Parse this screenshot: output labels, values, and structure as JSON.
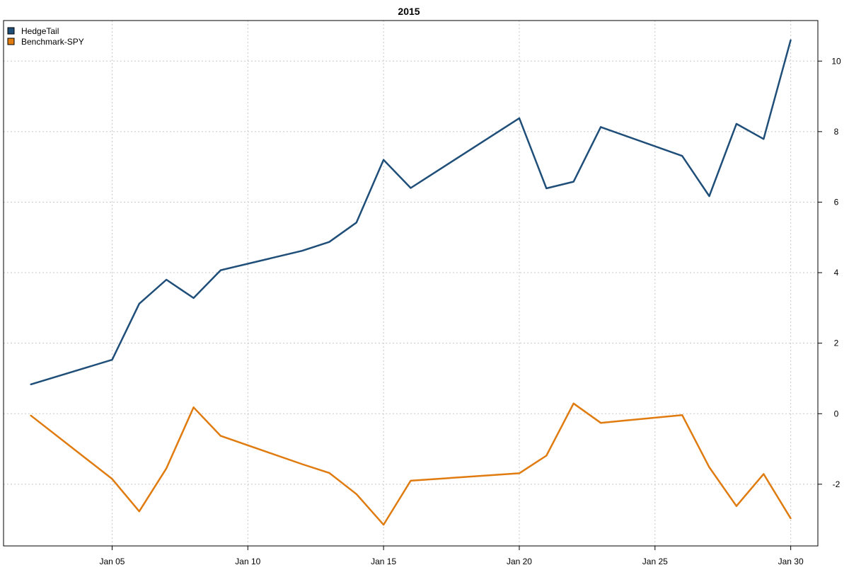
{
  "chart_data": {
    "type": "line",
    "title": "2015",
    "xlabel": "",
    "ylabel": "",
    "x": [
      "2015-01-02",
      "2015-01-05",
      "2015-01-06",
      "2015-01-07",
      "2015-01-08",
      "2015-01-09",
      "2015-01-12",
      "2015-01-13",
      "2015-01-14",
      "2015-01-15",
      "2015-01-16",
      "2015-01-20",
      "2015-01-21",
      "2015-01-22",
      "2015-01-23",
      "2015-01-26",
      "2015-01-27",
      "2015-01-28",
      "2015-01-29",
      "2015-01-30"
    ],
    "series": [
      {
        "name": "HedgeTail",
        "color": "#1f4e79",
        "values": [
          0.83,
          1.53,
          3.12,
          3.8,
          3.28,
          4.07,
          4.62,
          4.87,
          5.42,
          7.2,
          6.4,
          8.38,
          6.39,
          6.58,
          8.13,
          7.31,
          6.17,
          8.22,
          7.79,
          10.6
        ]
      },
      {
        "name": "Benchmark-SPY",
        "color": "#e07b10",
        "values": [
          -0.05,
          -1.85,
          -2.77,
          -1.55,
          0.18,
          -0.63,
          -1.43,
          -1.68,
          -2.28,
          -3.15,
          -1.9,
          -1.69,
          -1.19,
          0.29,
          -0.26,
          -0.04,
          -1.52,
          -2.62,
          -1.71,
          -2.97
        ]
      }
    ],
    "x_ticks": [
      "2015-01-05",
      "2015-01-10",
      "2015-01-15",
      "2015-01-20",
      "2015-01-25",
      "2015-01-30"
    ],
    "x_tick_labels": [
      "Jan 05",
      "Jan 10",
      "Jan 15",
      "Jan 20",
      "Jan 25",
      "Jan 30"
    ],
    "y_ticks": [
      -2,
      0,
      2,
      4,
      6,
      8,
      10
    ],
    "y_tick_labels": [
      "-2",
      "0",
      "2",
      "4",
      "6",
      "8",
      "10"
    ],
    "ylim": [
      -3.75,
      11.15
    ],
    "xlim": [
      "2015-01-01",
      "2015-01-31"
    ],
    "grid": true,
    "y_axis_side": "right",
    "legend_position": "top-left"
  }
}
